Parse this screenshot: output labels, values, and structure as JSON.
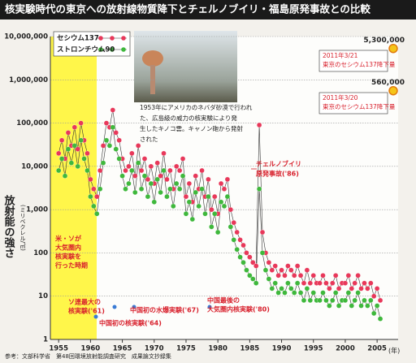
{
  "chart_data": {
    "type": "line",
    "title": "核実験時代の東京への放射線物質降下とチェルノブイリ・福島原発事故との比較",
    "ylabel": "放射能の強さ",
    "yunit": "(ミリベクレル/㎡)",
    "xunit": "(年)",
    "source": "参考：文部科学省　第48回環境放射能調査研究　成果論文抄録集",
    "log_y": true,
    "grid": true,
    "legend": "upper left",
    "xlim": [
      1953.7,
      2008.3
    ],
    "ylim": [
      1,
      10000000
    ],
    "xticks": [
      1955,
      1960,
      1965,
      1970,
      1975,
      1980,
      1985,
      1990,
      1995,
      2000,
      2005
    ],
    "yticks": [
      1,
      10,
      100,
      {
        "value": 1000,
        "label": "1,000"
      },
      {
        "value": 10000,
        "label": "10,000"
      },
      {
        "value": 100000,
        "label": "100,000"
      },
      {
        "value": 1000000,
        "label": "1,000,000"
      },
      {
        "value": 10000000,
        "label": "10,000,000"
      }
    ],
    "x": [
      1955,
      1955.5,
      1956,
      1956.5,
      1957,
      1957.5,
      1958,
      1958.5,
      1959,
      1959.5,
      1960,
      1960.5,
      1961,
      1961.5,
      1962,
      1962.5,
      1963,
      1963.5,
      1964,
      1964.5,
      1965,
      1965.5,
      1966,
      1966.5,
      1967,
      1967.5,
      1968,
      1968.5,
      1969,
      1969.5,
      1970,
      1970.5,
      1971,
      1971.5,
      1972,
      1972.5,
      1973,
      1973.5,
      1974,
      1974.5,
      1975,
      1975.5,
      1976,
      1976.5,
      1977,
      1977.5,
      1978,
      1978.5,
      1979,
      1979.5,
      1980,
      1980.5,
      1981,
      1981.5,
      1982,
      1982.5,
      1983,
      1983.5,
      1984,
      1984.5,
      1985,
      1985.5,
      1986,
      1986.5,
      1987,
      1987.5,
      1988,
      1988.5,
      1989,
      1989.5,
      1990,
      1990.5,
      1991,
      1991.5,
      1992,
      1992.5,
      1993,
      1993.5,
      1994,
      1994.5,
      1995,
      1995.5,
      1996,
      1996.5,
      1997,
      1997.5,
      1998,
      1998.5,
      1999,
      1999.5,
      2000,
      2000.5,
      2001,
      2001.5,
      2002,
      2002.5,
      2003,
      2003.5,
      2004,
      2004.5,
      2005,
      2005.5
    ],
    "series": [
      {
        "name": "セシウム137",
        "color": "#e8385a",
        "values": [
          20000,
          40000,
          15000,
          60000,
          30000,
          80000,
          25000,
          100000,
          40000,
          20000,
          5000,
          3000,
          2000,
          8000,
          30000,
          100000,
          80000,
          200000,
          60000,
          40000,
          15000,
          8000,
          10000,
          20000,
          6000,
          30000,
          8000,
          15000,
          5000,
          10000,
          4000,
          12000,
          6000,
          20000,
          5000,
          8000,
          3000,
          10000,
          8000,
          15000,
          2000,
          4000,
          1500,
          6000,
          3000,
          8000,
          2000,
          5000,
          1000,
          2000,
          800,
          4000,
          3000,
          5000,
          1000,
          500,
          300,
          200,
          150,
          100,
          80,
          60,
          50,
          90000,
          300,
          100,
          60,
          40,
          50,
          30,
          40,
          30,
          50,
          40,
          30,
          50,
          30,
          20,
          40,
          20,
          30,
          20,
          20,
          30,
          20,
          15,
          20,
          30,
          15,
          20,
          20,
          30,
          15,
          20,
          30,
          15,
          20,
          15,
          20,
          10,
          15,
          8
        ]
      },
      {
        "name": "ストロンチウム90",
        "color": "#3fb83c",
        "values": [
          8000,
          15000,
          6000,
          25000,
          12000,
          30000,
          10000,
          40000,
          15000,
          8000,
          2000,
          1200,
          800,
          3000,
          12000,
          40000,
          30000,
          80000,
          25000,
          15000,
          6000,
          3000,
          4000,
          8000,
          2500,
          12000,
          3000,
          6000,
          2000,
          4000,
          1500,
          5000,
          2500,
          8000,
          2000,
          3000,
          1200,
          4000,
          3000,
          6000,
          800,
          1500,
          600,
          2500,
          1200,
          3000,
          800,
          2000,
          400,
          800,
          300,
          1500,
          1200,
          2000,
          400,
          200,
          120,
          80,
          60,
          40,
          30,
          25,
          20,
          3000,
          100,
          40,
          25,
          15,
          20,
          12,
          15,
          12,
          20,
          15,
          12,
          20,
          12,
          8,
          15,
          8,
          12,
          8,
          8,
          12,
          8,
          6,
          8,
          12,
          6,
          8,
          8,
          12,
          6,
          8,
          12,
          6,
          8,
          6,
          8,
          4,
          6,
          3
        ]
      }
    ],
    "highlights": [
      {
        "lines": [
          "2011年3/21",
          "東京のセシウム137降下量"
        ],
        "value": 5300000,
        "value_label": "5,300,000"
      },
      {
        "lines": [
          "2011年3/20",
          "東京のセシウム137降下量"
        ],
        "value": 560000,
        "value_label": "560,000"
      }
    ],
    "annotations": [
      {
        "lines": [
          "米・ソが",
          "大気圏内",
          "核実験を",
          "行った時期"
        ]
      },
      {
        "lines": [
          "ソ連最大の",
          "核実験('61)"
        ]
      },
      {
        "lines": [
          "中国初の核実験('64)"
        ]
      },
      {
        "lines": [
          "中国初の水爆実験('67)"
        ]
      },
      {
        "lines": [
          "中国最後の",
          "大気圏内核実験('80)"
        ]
      },
      {
        "lines": [
          "チェルノブイリ",
          "原発事故('86)"
        ]
      }
    ],
    "photo_caption": [
      "1953年にアメリカのネバダ砂漠で行われ",
      "た、広島級の威力の核実験により発",
      "生したキノコ雲。キャノン砲から発射",
      "された"
    ]
  }
}
